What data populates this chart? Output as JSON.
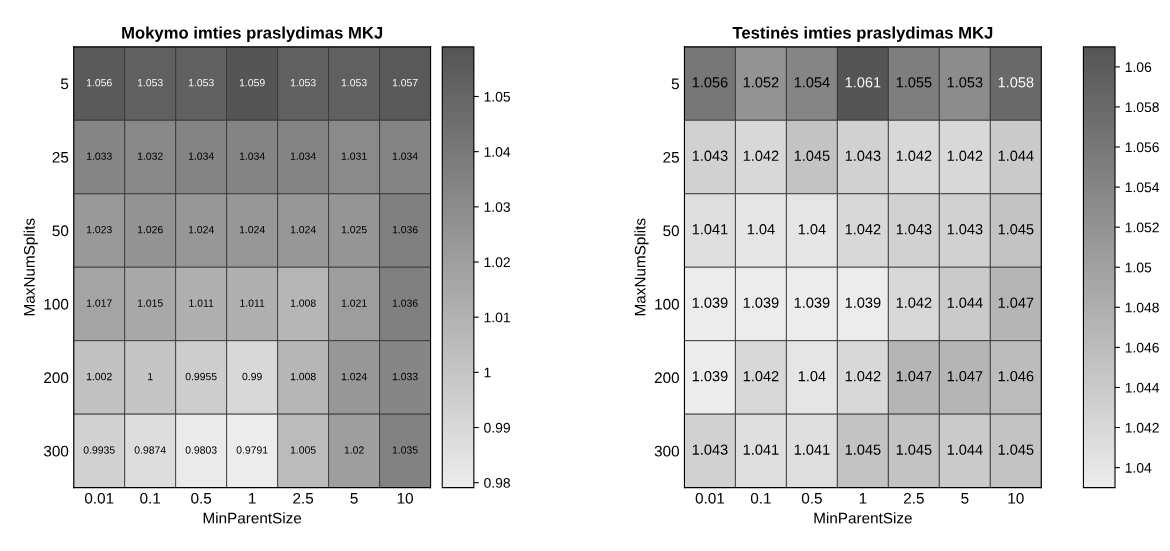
{
  "chart_data": [
    {
      "type": "heatmap",
      "title": "Mokymo imties praslydimas MKJ",
      "xlabel": "MinParentSize",
      "ylabel": "MaxNumSplits",
      "categories": [
        "0.01",
        "0.1",
        "0.5",
        "1",
        "2.5",
        "5",
        "10"
      ],
      "y_categories": [
        "5",
        "25",
        "50",
        "100",
        "200",
        "300"
      ],
      "cells": [
        [
          1.056,
          1.053,
          1.053,
          1.059,
          1.053,
          1.053,
          1.057
        ],
        [
          1.033,
          1.032,
          1.034,
          1.034,
          1.034,
          1.031,
          1.034
        ],
        [
          1.023,
          1.026,
          1.024,
          1.024,
          1.024,
          1.025,
          1.036
        ],
        [
          1.017,
          1.015,
          1.011,
          1.011,
          1.008,
          1.021,
          1.036
        ],
        [
          1.002,
          1,
          0.9955,
          0.99,
          1.008,
          1.024,
          1.033
        ],
        [
          0.9935,
          0.9874,
          0.9803,
          0.9791,
          1.005,
          1.02,
          1.035
        ]
      ],
      "clim": [
        0.9791,
        1.059
      ],
      "cticks": [
        0.98,
        0.99,
        1,
        1.01,
        1.02,
        1.03,
        1.04,
        1.05
      ],
      "data_labels": true
    },
    {
      "type": "heatmap",
      "title": "Testinės imties praslydimas MKJ",
      "xlabel": "MinParentSize",
      "ylabel": "MaxNumSplits",
      "categories": [
        "0.01",
        "0.1",
        "0.5",
        "1",
        "2.5",
        "5",
        "10"
      ],
      "y_categories": [
        "5",
        "25",
        "50",
        "100",
        "200",
        "300"
      ],
      "cells": [
        [
          1.056,
          1.052,
          1.054,
          1.061,
          1.055,
          1.053,
          1.058
        ],
        [
          1.043,
          1.042,
          1.045,
          1.043,
          1.042,
          1.042,
          1.044
        ],
        [
          1.041,
          1.04,
          1.04,
          1.042,
          1.043,
          1.043,
          1.045
        ],
        [
          1.039,
          1.039,
          1.039,
          1.039,
          1.042,
          1.044,
          1.047
        ],
        [
          1.039,
          1.042,
          1.04,
          1.042,
          1.047,
          1.047,
          1.046
        ],
        [
          1.043,
          1.041,
          1.041,
          1.045,
          1.045,
          1.044,
          1.045
        ]
      ],
      "clim": [
        1.039,
        1.061
      ],
      "cticks": [
        1.04,
        1.042,
        1.044,
        1.046,
        1.048,
        1.05,
        1.052,
        1.054,
        1.056,
        1.058,
        1.06
      ],
      "data_labels": true
    }
  ]
}
